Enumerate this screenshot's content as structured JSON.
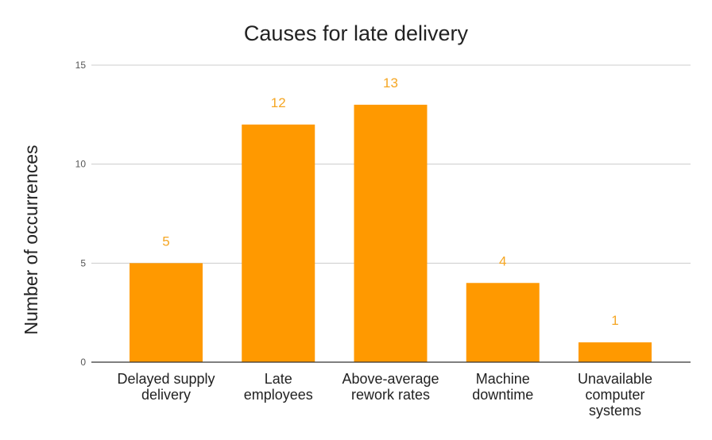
{
  "chart_data": {
    "type": "bar",
    "title": "Causes for late delivery",
    "xlabel": "",
    "ylabel": "Number of occurrences",
    "categories": [
      [
        "Delayed supply",
        "delivery"
      ],
      [
        "Late",
        "employees"
      ],
      [
        "Above-average",
        "rework rates"
      ],
      [
        "Machine",
        "downtime"
      ],
      [
        "Unavailable",
        "computer",
        "systems"
      ]
    ],
    "values": [
      5,
      12,
      13,
      4,
      1
    ],
    "data_labels": [
      "5",
      "12",
      "13",
      "4",
      "1"
    ],
    "ylim": [
      0,
      15
    ],
    "yticks": [
      0,
      5,
      10,
      15
    ],
    "grid": true,
    "legend": "none",
    "colors": {
      "bar": "#ff9900",
      "label": "#f5a623",
      "grid": "#cccccc",
      "axis": "#333333"
    }
  }
}
